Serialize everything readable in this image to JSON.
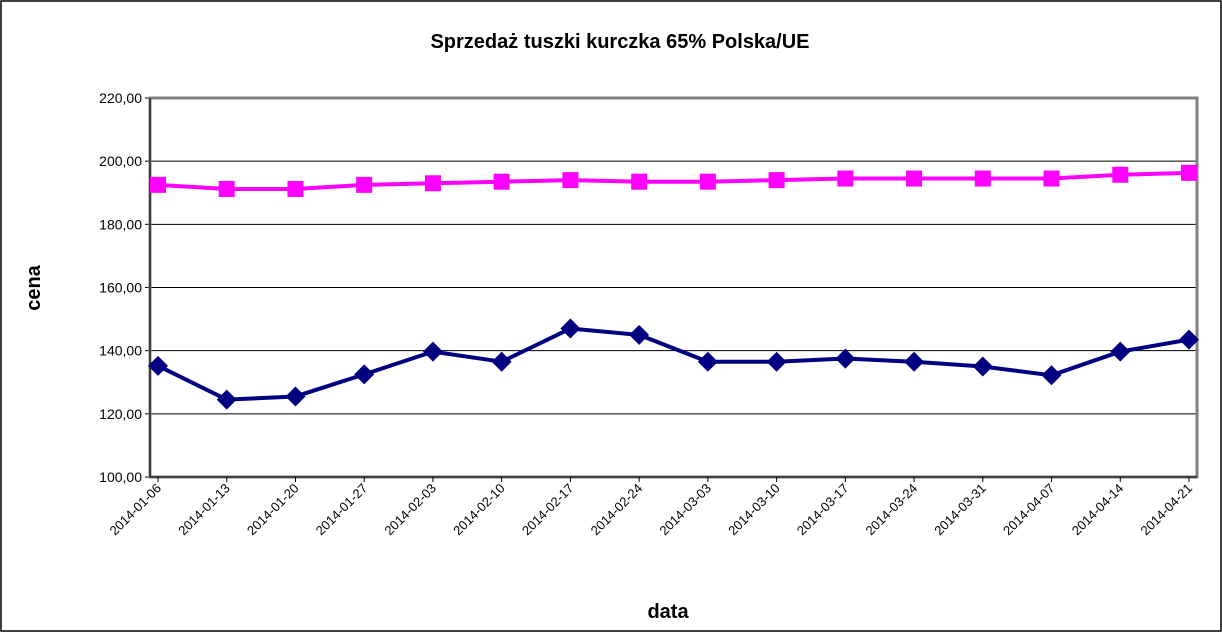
{
  "chart_data": {
    "type": "line",
    "title": "Sprzedaż tuszki kurczka 65% Polska/UE",
    "x_label": "data",
    "y_label": "cena",
    "categories": [
      "2014-01-06",
      "2014-01-13",
      "2014-01-20",
      "2014-01-27",
      "2014-02-03",
      "2014-02-10",
      "2014-02-17",
      "2014-02-24",
      "2014-03-03",
      "2014-03-10",
      "2014-03-17",
      "2014-03-24",
      "2014-03-31",
      "2014-04-07",
      "2014-04-14",
      "2014-04-21"
    ],
    "series": [
      {
        "color": "#000080",
        "marker": "diamond",
        "values": [
          135.2,
          124.5,
          125.5,
          132.5,
          139.7,
          136.5,
          147,
          145,
          136.5,
          136.5,
          137.5,
          136.5,
          135,
          132.2,
          139.7,
          143.5
        ]
      },
      {
        "color": "#ff00ff",
        "marker": "square",
        "values": [
          192.5,
          191.2,
          191.2,
          192.5,
          193,
          193.5,
          194,
          193.5,
          193.5,
          194,
          194.5,
          194.5,
          194.5,
          194.5,
          195.7,
          196.3
        ]
      }
    ],
    "ylim": [
      100,
      220
    ],
    "yticks": [
      {
        "value": 100,
        "label": "100,00"
      },
      {
        "value": 120,
        "label": "120,00"
      },
      {
        "value": 140,
        "label": "140,00"
      },
      {
        "value": 160,
        "label": "160,00"
      },
      {
        "value": 180,
        "label": "180,00"
      },
      {
        "value": 200,
        "label": "200,00"
      },
      {
        "value": 220,
        "label": "220,00"
      }
    ],
    "grid": true
  }
}
